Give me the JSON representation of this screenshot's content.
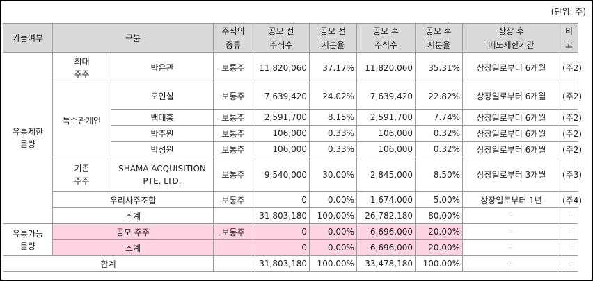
{
  "unit": "(단위: 주)",
  "headers": [
    "가능여부",
    "구분",
    "주식의\n종류",
    "공모 전\n주식수",
    "공모 전\n지분율",
    "공모 후\n주식수",
    "공모 후\n지분율",
    "상장 후\n매도제한기간",
    "비고"
  ],
  "restricted_label": "유통제한\n물량",
  "tradable_label": "유통가능\n물량",
  "groups": {
    "largest": "최대\n주주",
    "related": "특수관계인",
    "existing": "기존\n주주"
  },
  "rows": [
    {
      "name": "박은관",
      "type": "보통주",
      "pre_shares": "11,820,060",
      "pre_pct": "37.17%",
      "post_shares": "11,820,060",
      "post_pct": "35.31%",
      "lockup": "상장일로부터 6개월",
      "note": "(주2)"
    },
    {
      "name": "오인실",
      "type": "보통주",
      "pre_shares": "7,639,420",
      "pre_pct": "24.02%",
      "post_shares": "7,639,420",
      "post_pct": "22.82%",
      "lockup": "상장일로부터 6개월",
      "note": "(주2)"
    },
    {
      "name": "백대홍",
      "type": "보통주",
      "pre_shares": "2,591,700",
      "pre_pct": "8.15%",
      "post_shares": "2,591,700",
      "post_pct": "7.74%",
      "lockup": "상장일로부터 6개월",
      "note": "(주2)"
    },
    {
      "name": "박주원",
      "type": "보통주",
      "pre_shares": "106,000",
      "pre_pct": "0.33%",
      "post_shares": "106,000",
      "post_pct": "0.32%",
      "lockup": "상장일로부터 6개월",
      "note": "(주2)"
    },
    {
      "name": "박성원",
      "type": "보통주",
      "pre_shares": "106,000",
      "pre_pct": "0.33%",
      "post_shares": "106,000",
      "post_pct": "0.32%",
      "lockup": "상장일로부터 6개월",
      "note": "(주2)"
    },
    {
      "name": "SHAMA ACQUISITION\nPTE. LTD.",
      "type": "보통주",
      "pre_shares": "9,540,000",
      "pre_pct": "30.00%",
      "post_shares": "2,845,000",
      "post_pct": "8.50%",
      "lockup": "상장일로부터 3개월",
      "note": "(주3)"
    },
    {
      "name": "우리사주조합",
      "type": "보통주",
      "pre_shares": "0",
      "pre_pct": "0.00%",
      "post_shares": "1,674,000",
      "post_pct": "5.00%",
      "lockup": "상장일로부터 1년",
      "note": "(주4)"
    },
    {
      "name": "소계",
      "type": "",
      "pre_shares": "31,803,180",
      "pre_pct": "100.00%",
      "post_shares": "26,782,180",
      "post_pct": "80.00%",
      "lockup": "-",
      "note": "-"
    },
    {
      "name": "공모 주주",
      "type": "보통주",
      "pre_shares": "0",
      "pre_pct": "0.00%",
      "post_shares": "6,696,000",
      "post_pct": "20.00%",
      "lockup": "-",
      "note": "-"
    },
    {
      "name": "소계",
      "type": "",
      "pre_shares": "0",
      "pre_pct": "0.00%",
      "post_shares": "6,696,000",
      "post_pct": "20.00%",
      "lockup": "-",
      "note": "-"
    },
    {
      "name": "합계",
      "type": "",
      "pre_shares": "31,803,180",
      "pre_pct": "100.00%",
      "post_shares": "33,478,180",
      "post_pct": "100.00%",
      "lockup": "-",
      "note": "-"
    }
  ]
}
